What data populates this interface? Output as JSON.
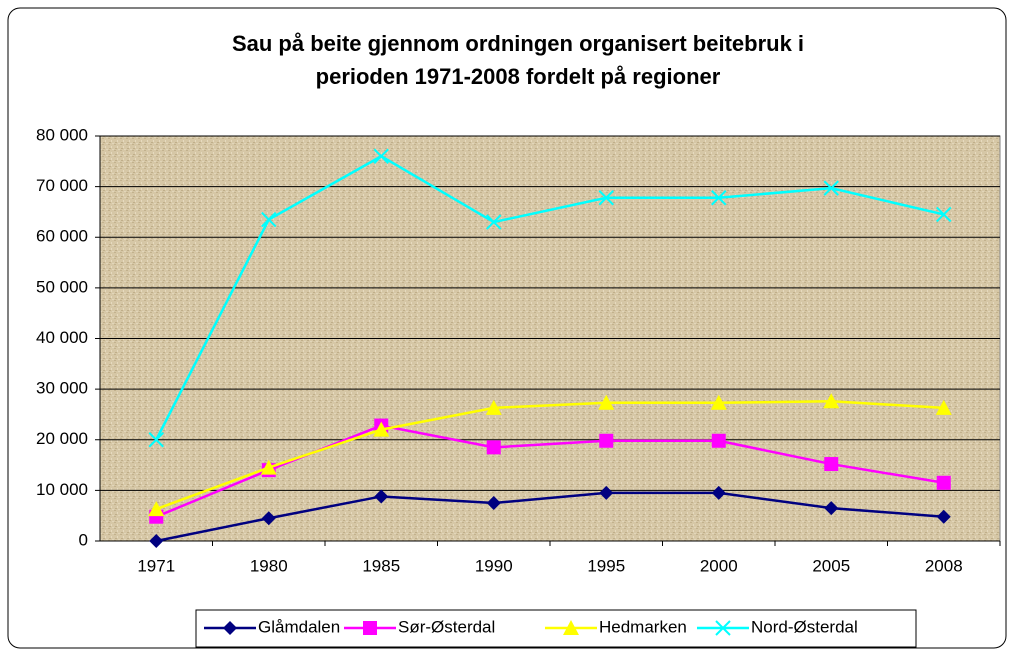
{
  "chart_data": {
    "type": "line",
    "title": [
      "Sau på beite gjennom ordningen organisert beitebruk i",
      "perioden 1971-2008 fordelt på regioner"
    ],
    "categories": [
      "1971",
      "1980",
      "1985",
      "1990",
      "1995",
      "2000",
      "2005",
      "2008"
    ],
    "series": [
      {
        "name": "Glåmdalen",
        "color": "#000080",
        "marker": "diamond",
        "values": [
          0,
          4500,
          8800,
          7500,
          9500,
          9500,
          6500,
          4800
        ]
      },
      {
        "name": "Sør-Østerdal",
        "color": "#ff00ff",
        "marker": "square",
        "values": [
          4800,
          14000,
          22800,
          18500,
          19800,
          19800,
          15200,
          11500
        ]
      },
      {
        "name": "Hedmarken",
        "color": "#ffff00",
        "marker": "triangle",
        "values": [
          6300,
          14500,
          22000,
          26300,
          27300,
          27300,
          27600,
          26300
        ]
      },
      {
        "name": "Nord-Østerdal",
        "color": "#00ffff",
        "marker": "x",
        "values": [
          20000,
          63500,
          76000,
          63000,
          67800,
          67800,
          69700,
          64500
        ]
      }
    ],
    "ylim": [
      0,
      80000
    ],
    "yticks": [
      0,
      {
        "value": 10000,
        "label": "10 000"
      },
      {
        "value": 20000,
        "label": "20 000"
      },
      {
        "value": 30000,
        "label": "30 000"
      },
      {
        "value": 40000,
        "label": "40 000"
      },
      {
        "value": 50000,
        "label": "50 000"
      },
      {
        "value": 60000,
        "label": "60 000"
      },
      {
        "value": 70000,
        "label": "70 000"
      },
      {
        "value": 80000,
        "label": "80 000"
      }
    ],
    "grid": true,
    "legend": "bottom"
  }
}
